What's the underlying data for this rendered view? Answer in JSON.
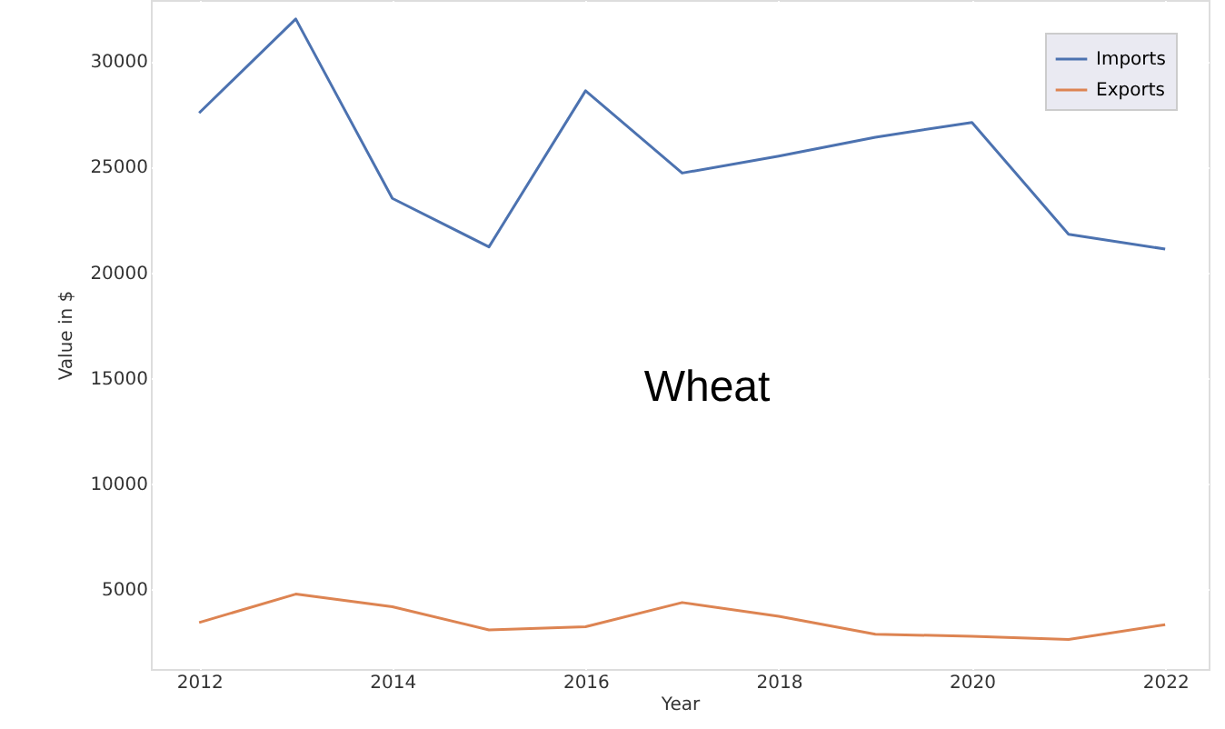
{
  "chart_data": {
    "type": "line",
    "xlabel": "Year",
    "ylabel": "Value in $",
    "x": [
      2012,
      2013,
      2014,
      2015,
      2016,
      2017,
      2018,
      2019,
      2020,
      2021,
      2022
    ],
    "series": [
      {
        "name": "Imports",
        "color": "#4c72b0",
        "values": [
          27550,
          32000,
          23500,
          21200,
          28600,
          24700,
          25500,
          26400,
          27100,
          21800,
          21100
        ]
      },
      {
        "name": "Exports",
        "color": "#dd8452",
        "values": [
          3400,
          4750,
          4150,
          3050,
          3200,
          4350,
          3700,
          2850,
          2750,
          2600,
          3300
        ]
      }
    ],
    "annotations": [
      "Wheat"
    ],
    "xlim": [
      2011.5,
      2022.45
    ],
    "xticks": [
      2012,
      2014,
      2016,
      2018,
      2020,
      2022
    ],
    "ylim": [
      1200,
      32900
    ],
    "yticks": [
      5000,
      10000,
      15000,
      20000,
      25000,
      30000
    ],
    "grid": true,
    "legend": "top right",
    "marker": "none",
    "line_style": "solid"
  }
}
